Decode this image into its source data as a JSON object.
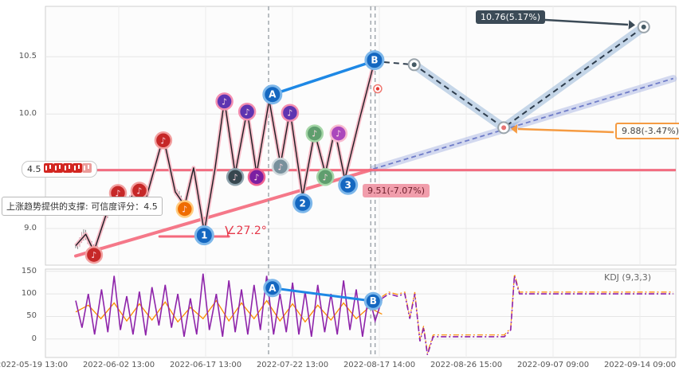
{
  "axes": {
    "x_labels": [
      "2022-05-19 13:00",
      "2022-06-02 13:00",
      "2022-06-17 13:00",
      "2022-07-22 13:00",
      "2022-08-17 14:00",
      "2022-08-26 15:00",
      "2022-09-07 09:00",
      "2022-09-14 09:00"
    ],
    "y_ticks_main": [
      {
        "label": "10.5",
        "value": 10.5
      },
      {
        "label": "10.0",
        "value": 10.0
      },
      {
        "label": "9.0",
        "value": 9.0
      }
    ],
    "y_ticks_sub": [
      {
        "label": "150",
        "value": 150
      },
      {
        "label": "100",
        "value": 100
      },
      {
        "label": "50",
        "value": 50
      },
      {
        "label": "0",
        "value": 0
      }
    ]
  },
  "annotations": {
    "target_up": "10.76(5.17%)",
    "target_mid": "9.88(-3.47%)",
    "target_down": "9.51(-7.07%)",
    "support_note": "上涨趋势提供的支撑: 可信度评分：4.5",
    "rating_score": "4.5",
    "angle": "∠27.2°",
    "kdj_label": "KDJ (9,3,3)"
  },
  "colors": {
    "support_pink": "#f4697c",
    "forecast_dark": "#2e3d4d",
    "ab_blue": "#1e88e5",
    "kdj_j": "#8e24aa",
    "kdj_k": "#fb8c00",
    "band_blue": "rgba(130,168,208,0.45)",
    "band_violet": "rgba(160,172,224,0.45)",
    "orange_arrow": "#f59b42"
  },
  "chart_data": {
    "type": "candlestick",
    "title": "",
    "panels": [
      {
        "id": "price",
        "ylim": [
          8.68,
          10.94
        ],
        "grid": true
      },
      {
        "id": "kdj",
        "ylim": [
          -41,
          155
        ],
        "grid": true,
        "label": "KDJ (9,3,3)"
      }
    ],
    "y_grid_main": [
      10.5,
      10.0,
      9.5,
      9.0
    ],
    "y_grid_sub": [
      150,
      100,
      50,
      0
    ],
    "support_level": 9.51,
    "wave": [
      [
        0.048,
        8.85
      ],
      [
        0.064,
        8.95
      ],
      [
        0.077,
        8.8
      ],
      [
        0.095,
        9.1
      ],
      [
        0.115,
        9.36
      ],
      [
        0.128,
        9.18
      ],
      [
        0.145,
        9.37
      ],
      [
        0.159,
        9.25
      ],
      [
        0.187,
        9.8
      ],
      [
        0.206,
        9.32
      ],
      [
        0.221,
        9.2
      ],
      [
        0.235,
        9.53
      ],
      [
        0.252,
        8.97
      ],
      [
        0.269,
        9.52
      ],
      [
        0.284,
        10.12
      ],
      [
        0.301,
        9.48
      ],
      [
        0.32,
        10.03
      ],
      [
        0.335,
        9.48
      ],
      [
        0.355,
        10.12
      ],
      [
        0.373,
        9.56
      ],
      [
        0.388,
        10.03
      ],
      [
        0.408,
        9.28
      ],
      [
        0.427,
        9.84
      ],
      [
        0.444,
        9.48
      ],
      [
        0.459,
        9.86
      ],
      [
        0.475,
        9.43
      ],
      [
        0.499,
        9.97
      ],
      [
        0.522,
        10.46
      ]
    ],
    "forecast_main": [
      [
        0.522,
        10.46
      ],
      [
        0.585,
        10.43
      ],
      [
        0.727,
        9.88
      ],
      [
        0.949,
        10.76
      ]
    ],
    "forecast_band": [
      [
        0.585,
        10.43
      ],
      [
        0.727,
        9.88
      ],
      [
        0.949,
        10.76
      ]
    ],
    "support_trend": [
      [
        0.048,
        8.76
      ],
      [
        0.516,
        9.51
      ]
    ],
    "support_forecast": [
      [
        0.52,
        9.52
      ],
      [
        0.996,
        10.31
      ]
    ],
    "angle_baseline": [
      [
        0.181,
        8.93
      ],
      [
        0.291,
        8.93
      ]
    ],
    "ab_line": [
      [
        0.36,
        10.17
      ],
      [
        0.52,
        10.46
      ]
    ],
    "vlines": [
      0.354,
      0.516,
      0.523
    ],
    "markers": {
      "notes": [
        [
          0.077,
          8.77,
          "#c62828",
          "#f2a0a0"
        ],
        [
          0.115,
          9.31,
          "#c62828",
          "#f2a0a0"
        ],
        [
          0.149,
          9.33,
          "#c62828",
          "#f2a0a0"
        ],
        [
          0.187,
          9.77,
          "#c62828",
          "#f2a0a0"
        ],
        [
          0.221,
          9.17,
          "#ef6c00",
          "#ffcc80"
        ],
        [
          0.284,
          10.11,
          "#5e35b1",
          "#f48fb1"
        ],
        [
          0.301,
          9.45,
          "#37474f",
          "#90a4ae"
        ],
        [
          0.32,
          10.02,
          "#5e35b1",
          "#f48fb1"
        ],
        [
          0.335,
          9.45,
          "#7b1fa2",
          "#f06292"
        ],
        [
          0.373,
          9.54,
          "#78909c",
          "#cfd8dc"
        ],
        [
          0.388,
          10.01,
          "#5e35b1",
          "#f48fb1"
        ],
        [
          0.427,
          9.83,
          "#5f9e6e",
          "#a5d6a7"
        ],
        [
          0.444,
          9.45,
          "#5f9e6e",
          "#a5d6a7"
        ],
        [
          0.465,
          9.83,
          "#ab47bc",
          "#f8bbd0"
        ]
      ],
      "waves": [
        [
          0.252,
          8.94,
          "1"
        ],
        [
          0.408,
          9.22,
          "2"
        ],
        [
          0.48,
          9.38,
          "3"
        ],
        [
          0.36,
          10.17,
          "A"
        ],
        [
          0.522,
          10.47,
          "B"
        ]
      ],
      "targets": [
        [
          0.585,
          10.43,
          "#455a64"
        ],
        [
          0.727,
          9.88,
          "#e57373"
        ],
        [
          0.949,
          10.76,
          "#455a64"
        ]
      ],
      "last_price": [
        0.527,
        10.22
      ]
    },
    "kdj": {
      "j": [
        [
          0.048,
          85
        ],
        [
          0.058,
          25
        ],
        [
          0.068,
          100
        ],
        [
          0.078,
          10
        ],
        [
          0.089,
          110
        ],
        [
          0.099,
          15
        ],
        [
          0.109,
          140
        ],
        [
          0.119,
          20
        ],
        [
          0.129,
          95
        ],
        [
          0.139,
          10
        ],
        [
          0.149,
          105
        ],
        [
          0.159,
          8
        ],
        [
          0.169,
          115
        ],
        [
          0.18,
          30
        ],
        [
          0.19,
          120
        ],
        [
          0.2,
          25
        ],
        [
          0.21,
          100
        ],
        [
          0.22,
          5
        ],
        [
          0.23,
          90
        ],
        [
          0.24,
          10
        ],
        [
          0.25,
          145
        ],
        [
          0.26,
          20
        ],
        [
          0.271,
          100
        ],
        [
          0.281,
          5
        ],
        [
          0.291,
          130
        ],
        [
          0.301,
          15
        ],
        [
          0.311,
          110
        ],
        [
          0.321,
          10
        ],
        [
          0.331,
          120
        ],
        [
          0.341,
          20
        ],
        [
          0.351,
          140
        ],
        [
          0.362,
          10
        ],
        [
          0.372,
          100
        ],
        [
          0.382,
          15
        ],
        [
          0.392,
          125
        ],
        [
          0.402,
          10
        ],
        [
          0.412,
          105
        ],
        [
          0.422,
          5
        ],
        [
          0.432,
          120
        ],
        [
          0.443,
          15
        ],
        [
          0.453,
          100
        ],
        [
          0.463,
          10
        ],
        [
          0.473,
          130
        ],
        [
          0.483,
          20
        ],
        [
          0.493,
          110
        ],
        [
          0.503,
          5
        ],
        [
          0.513,
          100
        ],
        [
          0.523,
          40
        ],
        [
          0.534,
          88
        ]
      ],
      "k": [
        [
          0.048,
          60
        ],
        [
          0.068,
          75
        ],
        [
          0.088,
          45
        ],
        [
          0.109,
          80
        ],
        [
          0.129,
          40
        ],
        [
          0.149,
          78
        ],
        [
          0.169,
          42
        ],
        [
          0.19,
          82
        ],
        [
          0.21,
          38
        ],
        [
          0.23,
          70
        ],
        [
          0.25,
          45
        ],
        [
          0.271,
          85
        ],
        [
          0.291,
          40
        ],
        [
          0.311,
          80
        ],
        [
          0.331,
          45
        ],
        [
          0.351,
          85
        ],
        [
          0.372,
          40
        ],
        [
          0.392,
          78
        ],
        [
          0.412,
          38
        ],
        [
          0.432,
          75
        ],
        [
          0.453,
          42
        ],
        [
          0.473,
          80
        ],
        [
          0.493,
          45
        ],
        [
          0.513,
          70
        ],
        [
          0.534,
          55
        ]
      ],
      "forecast": [
        [
          0.534,
          90
        ],
        [
          0.545,
          100
        ],
        [
          0.558,
          95
        ],
        [
          0.57,
          100
        ],
        [
          0.578,
          45
        ],
        [
          0.586,
          100
        ],
        [
          0.594,
          -5
        ],
        [
          0.6,
          25
        ],
        [
          0.606,
          -35
        ],
        [
          0.615,
          5
        ],
        [
          0.728,
          5
        ],
        [
          0.738,
          20
        ],
        [
          0.744,
          140
        ],
        [
          0.752,
          100
        ],
        [
          0.996,
          100
        ]
      ],
      "ab": [
        [
          0.36,
          113
        ],
        [
          0.52,
          84
        ]
      ],
      "ab_labels": [
        "A",
        "B"
      ]
    }
  }
}
